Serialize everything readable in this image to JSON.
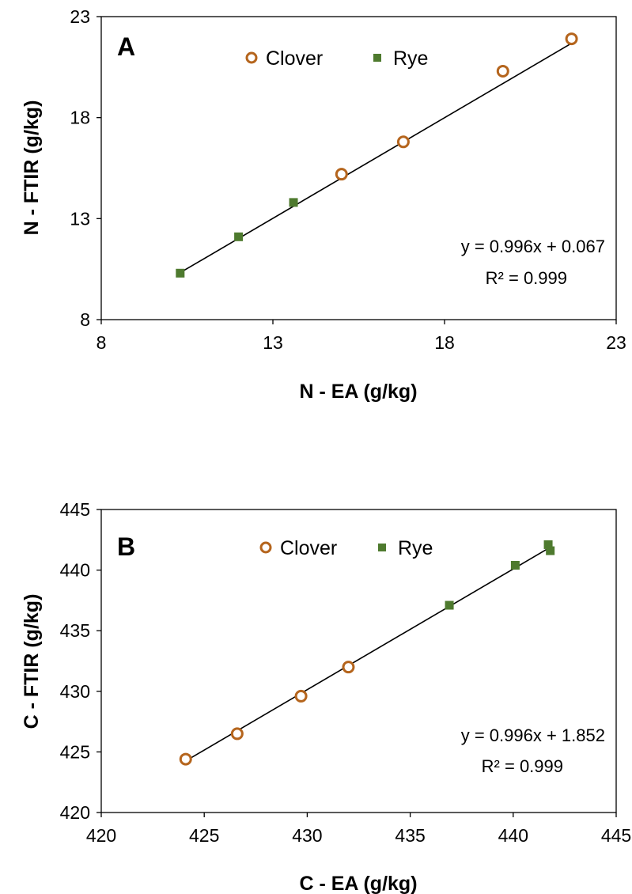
{
  "colors": {
    "clover": "#b5651d",
    "rye": "#4e7a2e",
    "fit": "#000000",
    "frame": "#000000"
  },
  "chart_data": [
    {
      "type": "scatter",
      "panel_label": "A",
      "xlabel": "N - EA (g/kg)",
      "ylabel": "N - FTIR (g/kg)",
      "xlim": [
        8,
        23
      ],
      "ylim": [
        8,
        23
      ],
      "xticks": [
        8,
        13,
        18,
        23
      ],
      "yticks": [
        8,
        13,
        18,
        23
      ],
      "grid": false,
      "legend_position": "top",
      "series": [
        {
          "name": "Clover",
          "marker": "open-circle",
          "x": [
            15.0,
            16.8,
            19.7,
            21.7
          ],
          "y": [
            15.2,
            16.8,
            20.3,
            21.9
          ]
        },
        {
          "name": "Rye",
          "marker": "square",
          "x": [
            10.3,
            12.0,
            13.6
          ],
          "y": [
            10.3,
            12.1,
            13.8
          ]
        }
      ],
      "trendline": {
        "slope": 0.996,
        "intercept": 0.067,
        "x_range": [
          10.3,
          21.7
        ]
      },
      "equation": "y = 0.996x + 0.067",
      "r_squared": "R² = 0.999"
    },
    {
      "type": "scatter",
      "panel_label": "B",
      "xlabel": "C - EA (g/kg)",
      "ylabel": "C - FTIR (g/kg)",
      "xlim": [
        420,
        445
      ],
      "ylim": [
        420,
        445
      ],
      "xticks": [
        420,
        425,
        430,
        435,
        440,
        445
      ],
      "yticks": [
        420,
        425,
        430,
        435,
        440,
        445
      ],
      "grid": false,
      "legend_position": "top",
      "series": [
        {
          "name": "Clover",
          "marker": "open-circle",
          "x": [
            424.1,
            426.6,
            429.7,
            432.0
          ],
          "y": [
            424.4,
            426.5,
            429.6,
            432.0
          ]
        },
        {
          "name": "Rye",
          "marker": "square",
          "x": [
            436.9,
            440.1,
            441.7,
            441.8
          ],
          "y": [
            437.1,
            440.4,
            442.1,
            441.6
          ]
        }
      ],
      "trendline": {
        "slope": 0.996,
        "intercept": 1.852,
        "x_range": [
          424.1,
          441.8
        ]
      },
      "equation": "y = 0.996x + 1.852",
      "r_squared": "R² = 0.999"
    }
  ]
}
